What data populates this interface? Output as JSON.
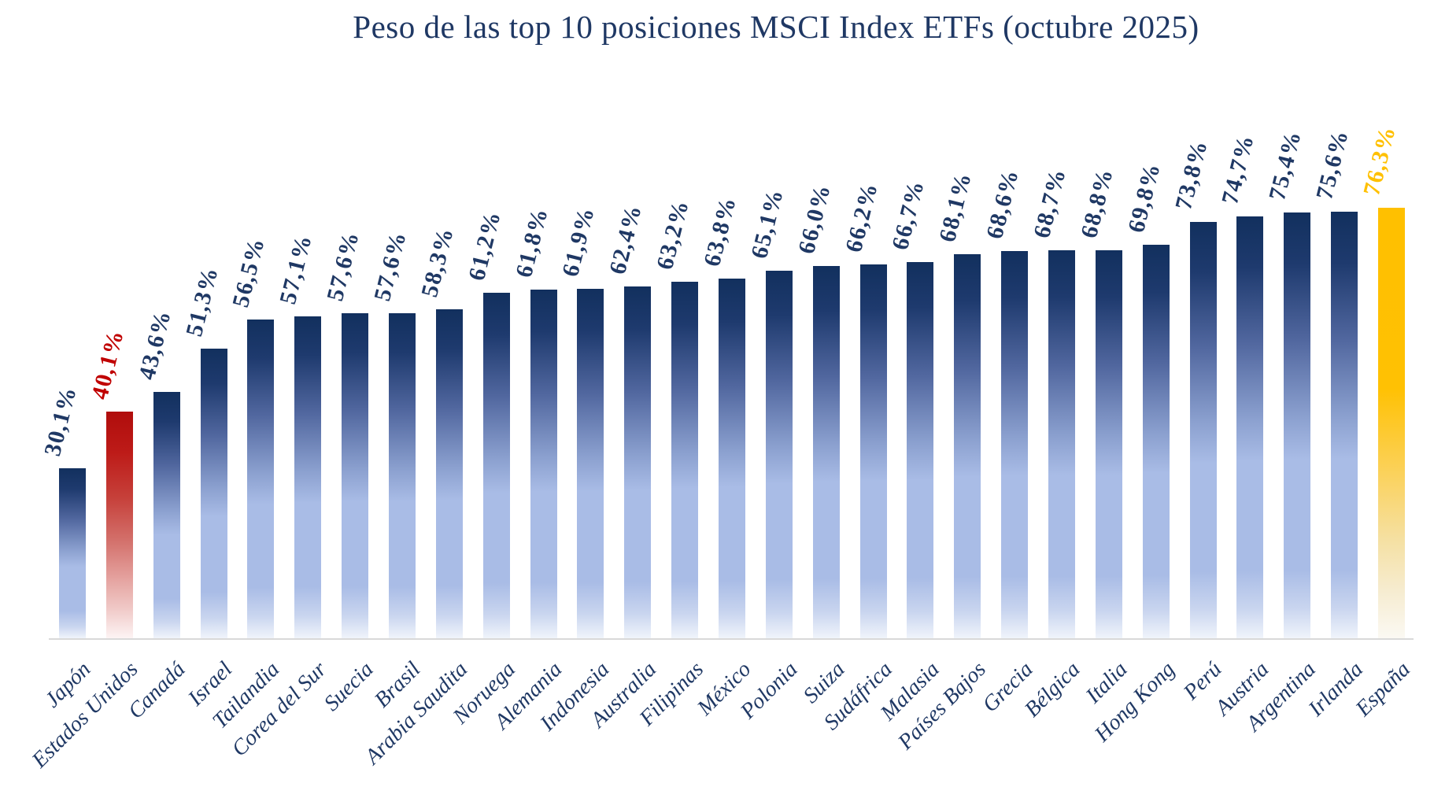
{
  "chart_data": {
    "type": "bar",
    "title": "Peso de las top 10 posiciones MSCI Index ETFs (octubre 2025)",
    "xlabel": "",
    "ylabel": "",
    "ylim": [
      0,
      80
    ],
    "grid": false,
    "legend": "none",
    "categories": [
      "Japón",
      "Estados Unidos",
      "Canadá",
      "Israel",
      "Tailandia",
      "Corea del Sur",
      "Suecia",
      "Brasil",
      "Arabia Saudita",
      "Noruega",
      "Alemania",
      "Indonesia",
      "Australia",
      "Filipinas",
      "México",
      "Polonia",
      "Suiza",
      "Sudáfrica",
      "Malasia",
      "Países Bajos",
      "Grecia",
      "Bélgica",
      "Italia",
      "Hong Kong",
      "Perú",
      "Austria",
      "Argentina",
      "Irlanda",
      "España"
    ],
    "values": [
      30.1,
      40.1,
      43.6,
      51.3,
      56.5,
      57.1,
      57.6,
      57.6,
      58.3,
      61.2,
      61.8,
      61.9,
      62.4,
      63.2,
      63.8,
      65.1,
      66.0,
      66.2,
      66.7,
      68.1,
      68.6,
      68.7,
      68.8,
      69.8,
      73.8,
      74.7,
      75.4,
      75.6,
      76.3
    ],
    "value_labels": [
      "30,1%",
      "40,1%",
      "43,6%",
      "51,3%",
      "56,5%",
      "57,1%",
      "57,6%",
      "57,6%",
      "58,3%",
      "61,2%",
      "61,8%",
      "61,9%",
      "62,4%",
      "63,2%",
      "63,8%",
      "65,1%",
      "66,0%",
      "66,2%",
      "66,7%",
      "68,1%",
      "68,6%",
      "68,7%",
      "68,8%",
      "69,8%",
      "73,8%",
      "74,7%",
      "75,4%",
      "75,6%",
      "76,3%"
    ],
    "bar_colors": [
      "navy",
      "red",
      "navy",
      "navy",
      "navy",
      "navy",
      "navy",
      "navy",
      "navy",
      "navy",
      "navy",
      "navy",
      "navy",
      "navy",
      "navy",
      "navy",
      "navy",
      "navy",
      "navy",
      "navy",
      "navy",
      "navy",
      "navy",
      "navy",
      "navy",
      "navy",
      "navy",
      "navy",
      "gold"
    ],
    "colors": {
      "bar_navy_top": "#12305e",
      "bar_navy_light": "#a9bce6",
      "bar_red": "#c00000",
      "bar_gold": "#ffc000",
      "label_navy": "#1f3864",
      "label_red": "#c00000",
      "label_gold": "#ffc000",
      "axis_line": "#d9d9d9",
      "title": "#1f3864"
    }
  }
}
